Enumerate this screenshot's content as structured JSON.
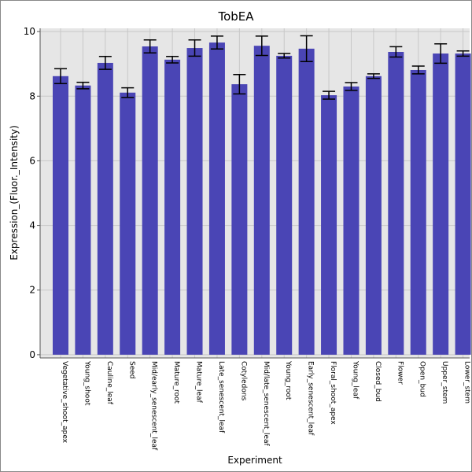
{
  "chart_data": {
    "type": "bar",
    "title": "TobEA",
    "x_label": "Experiment",
    "y_label": "Expression_(Fluor._Intensity)",
    "categories": [
      "Vegetative_shoot_apex",
      "Young_shoot",
      "Cauline_leaf",
      "Seed",
      "Mid/early_senescent_leaf",
      "Mature_root",
      "Mature_leaf",
      "Late_senescent_leaf",
      "Cotyledons",
      "Mid/late_senescent_leaf",
      "Young_root",
      "Early_senescent_leaf",
      "Floral_shoot_apex",
      "Young_leaf",
      "Closed_bud",
      "Flower",
      "Open_bud",
      "Upper_stem",
      "Lower_stem"
    ],
    "values": [
      8.62,
      8.33,
      9.03,
      8.11,
      9.54,
      9.13,
      9.49,
      9.66,
      8.37,
      9.56,
      9.25,
      9.47,
      8.03,
      8.3,
      8.62,
      9.37,
      8.81,
      9.32,
      9.32
    ],
    "errors": [
      0.23,
      0.1,
      0.2,
      0.15,
      0.2,
      0.1,
      0.25,
      0.2,
      0.3,
      0.3,
      0.07,
      0.4,
      0.12,
      0.12,
      0.07,
      0.16,
      0.12,
      0.3,
      0.08
    ],
    "color": "#4a45b5",
    "ylim": [
      -0.1,
      10.1
    ],
    "yticks": [
      0,
      2,
      4,
      6,
      8,
      10
    ],
    "grid": true
  }
}
